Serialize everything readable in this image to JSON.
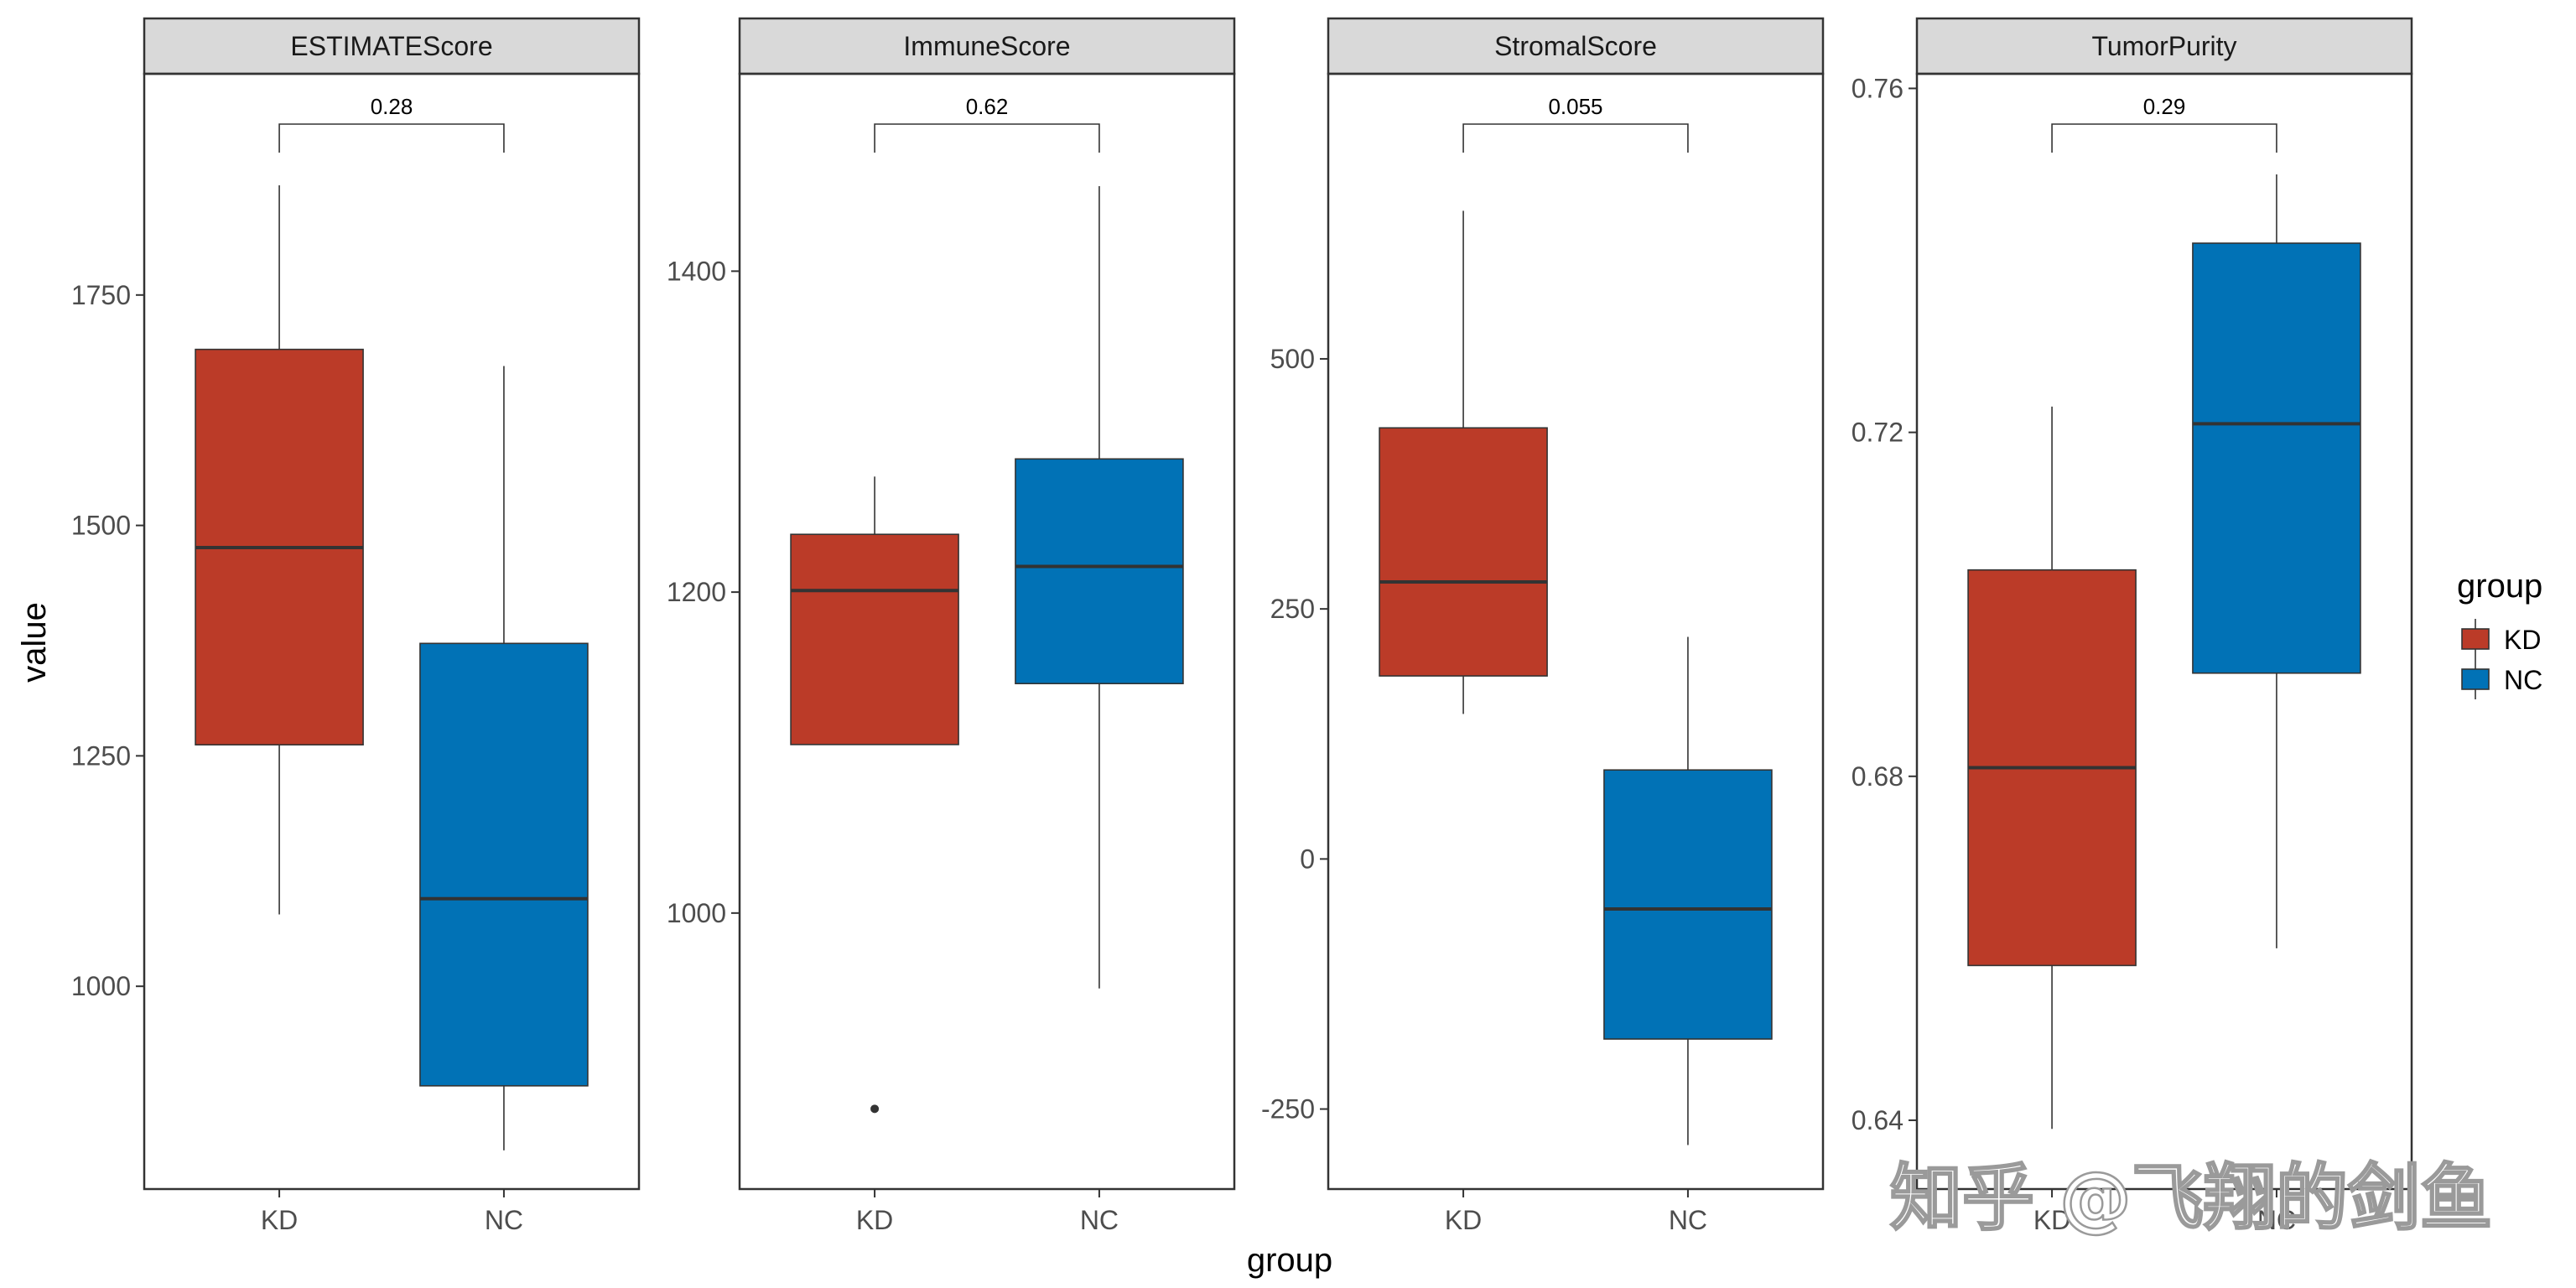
{
  "chart_data": {
    "type": "boxplot",
    "x_axis_title": "group",
    "y_axis_title": "value",
    "legend": {
      "title": "group",
      "position": "right",
      "entries": [
        {
          "label": "KD",
          "color": "#bb3b28"
        },
        {
          "label": "NC",
          "color": "#0172b6"
        }
      ]
    },
    "grid": false,
    "facets": [
      {
        "name": "ESTIMATEScore",
        "ylim": [
          780,
          1990
        ],
        "yticks": [
          1000,
          1250,
          1500,
          1750
        ],
        "ytick_labels": [
          "1000",
          "1250",
          "1500",
          "1750"
        ],
        "p_value": "0.28",
        "groups": [
          {
            "label": "KD",
            "min": 1078,
            "q1": 1262,
            "median": 1476,
            "q3": 1691,
            "max": 1869,
            "outliers": []
          },
          {
            "label": "NC",
            "min": 822,
            "q1": 892,
            "median": 1095,
            "q3": 1372,
            "max": 1673,
            "outliers": []
          }
        ]
      },
      {
        "name": "ImmuneScore",
        "ylim": [
          828,
          1523
        ],
        "yticks": [
          1000,
          1200,
          1400
        ],
        "ytick_labels": [
          "1000",
          "1200",
          "1400"
        ],
        "p_value": "0.62",
        "groups": [
          {
            "label": "KD",
            "min": 1105,
            "q1": 1105,
            "median": 1201,
            "q3": 1236,
            "max": 1272,
            "outliers": [
              878
            ]
          },
          {
            "label": "NC",
            "min": 953,
            "q1": 1143,
            "median": 1216,
            "q3": 1283,
            "max": 1453,
            "outliers": []
          }
        ]
      },
      {
        "name": "StromalScore",
        "ylim": [
          -330,
          785
        ],
        "yticks": [
          -250,
          0,
          250,
          500
        ],
        "ytick_labels": [
          "-250",
          "0",
          "250",
          "500"
        ],
        "p_value": "0.055",
        "groups": [
          {
            "label": "KD",
            "min": 145,
            "q1": 183,
            "median": 277,
            "q3": 431,
            "max": 648,
            "outliers": []
          },
          {
            "label": "NC",
            "min": -286,
            "q1": -180,
            "median": -50,
            "q3": 89,
            "max": 222,
            "outliers": []
          }
        ]
      },
      {
        "name": "TumorPurity",
        "ylim": [
          0.632,
          0.7617
        ],
        "yticks": [
          0.64,
          0.68,
          0.72,
          0.76
        ],
        "ytick_labels": [
          "0.64",
          "0.68",
          "0.72",
          "0.76"
        ],
        "p_value": "0.29",
        "groups": [
          {
            "label": "KD",
            "min": 0.639,
            "q1": 0.658,
            "median": 0.681,
            "q3": 0.704,
            "max": 0.723,
            "outliers": []
          },
          {
            "label": "NC",
            "min": 0.66,
            "q1": 0.692,
            "median": 0.721,
            "q3": 0.742,
            "max": 0.75,
            "outliers": []
          }
        ]
      }
    ]
  },
  "watermark": "知乎 @飞翔的剑鱼"
}
